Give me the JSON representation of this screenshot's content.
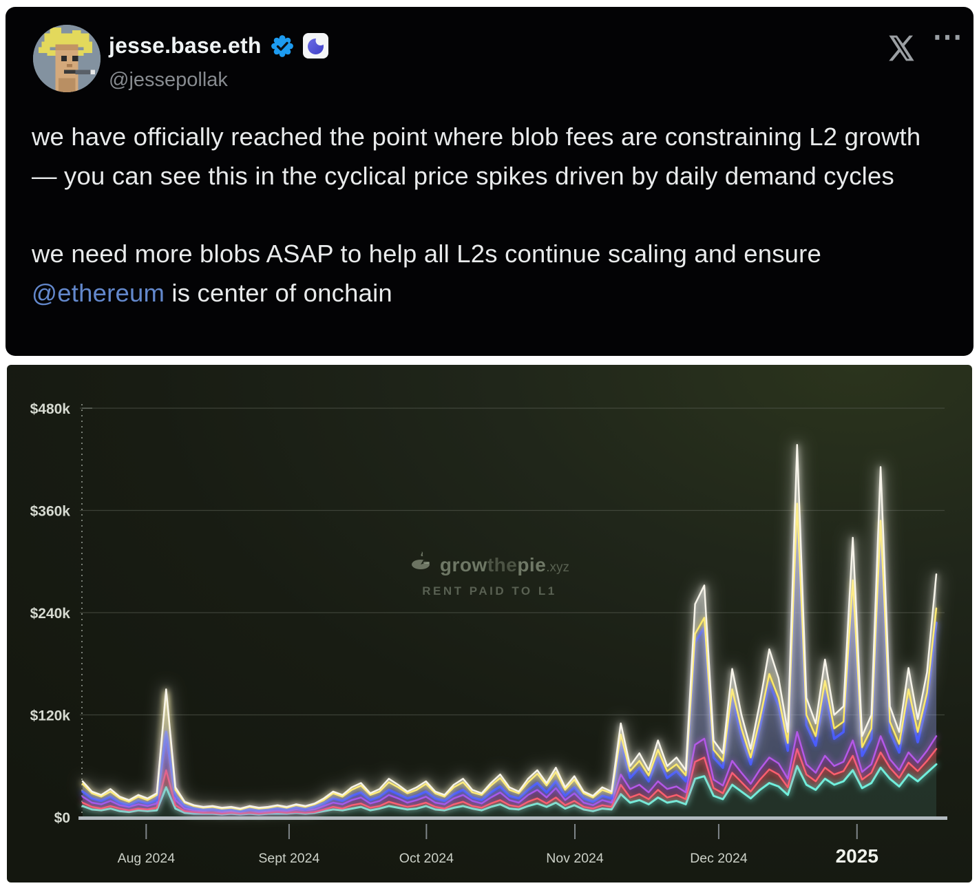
{
  "tweet": {
    "display_name": "jesse.base.eth",
    "handle": "@jessepollak",
    "icons": {
      "more": "⋯"
    },
    "body": {
      "para1": "we have officially reached the point where blob fees are constraining L2 growth — you can see this in the cyclical price spikes driven by daily demand cycles",
      "para2_before": "we need more blobs ASAP to help all L2s continue scaling and ensure ",
      "para2_link": "@ethereum",
      "para2_after": " is center of onchain"
    },
    "colors": {
      "link_blue": "#6388cc",
      "verified_blue": "#1d9bf0",
      "base_badge_blue": "#5355d8"
    }
  },
  "chart": {
    "watermark": {
      "brand_prefix": "grow",
      "brand_mid": "the",
      "brand_suffix": "pie",
      "tld": ".xyz",
      "subtitle": "RENT PAID TO L1"
    }
  },
  "chart_data": {
    "type": "area",
    "stacked": true,
    "title": "RENT PAID TO L1",
    "watermark": "growthepie.xyz",
    "x_range": "mid-Jul 2024 to mid-Jan 2025, daily data (sampled every 2 days here)",
    "x_tick_labels": [
      "Aug 2024",
      "Sept 2024",
      "Oct 2024",
      "Nov 2024",
      "Dec 2024",
      "2025"
    ],
    "x_tick_days": [
      13.7,
      44.5,
      74.1,
      106.1,
      137.1,
      166.9
    ],
    "y_tick_labels": [
      "$0",
      "$120k",
      "$240k",
      "$360k",
      "$480k"
    ],
    "y_tick_values": [
      0,
      120,
      240,
      360,
      480
    ],
    "ylim": [
      0,
      480
    ],
    "y_unit": "thousand USD per day",
    "days_span": 184,
    "sample_step_days": 2,
    "grid": true,
    "legend": "none visible",
    "note": "Stacked area chart of daily rent paid to L1 by L2s. Values are cumulative stack tops in $k; series listed bottom to top. No legend visible, so series are named by line color. Landmarks: ~$150k spike early Aug 2024, quiet ~$10-15k mid-Aug to mid-Sept, ~$30-55k cyclical bumps Oct-Nov, ~$110k spike mid-Nov, twin spikes ~$250k/$272k early Dec, giant ~$437k spike late Dec, ~$328k and ~$411k spikes early-mid Jan 2025, rising to ~$285k at right edge.",
    "series": [
      {
        "name": "cyan-series",
        "color": "#6ff0dd",
        "cumulative_values": [
          13,
          9,
          8,
          10,
          7,
          6,
          8,
          7,
          8,
          35,
          10,
          5,
          4,
          4,
          4,
          3,
          4,
          3,
          4,
          3,
          4,
          4,
          4,
          5,
          4,
          5,
          7,
          9,
          8,
          10,
          12,
          8,
          10,
          13,
          11,
          9,
          10,
          13,
          9,
          8,
          11,
          13,
          10,
          8,
          12,
          15,
          10,
          9,
          13,
          16,
          12,
          17,
          10,
          14,
          9,
          7,
          10,
          9,
          27,
          17,
          20,
          15,
          23,
          17,
          19,
          15,
          45,
          48,
          25,
          21,
          38,
          30,
          22,
          32,
          40,
          36,
          26,
          60,
          38,
          32,
          45,
          38,
          42,
          55,
          34,
          40,
          58,
          45,
          36,
          50,
          42,
          52,
          62
        ]
      },
      {
        "name": "red-series",
        "color": "#ff5f6d",
        "cumulative_values": [
          17,
          12,
          10,
          13,
          10,
          8,
          10,
          9,
          11,
          55,
          14,
          7,
          6,
          5,
          5,
          4,
          5,
          4,
          5,
          4,
          5,
          6,
          5,
          6,
          5,
          6,
          9,
          12,
          10,
          14,
          16,
          11,
          13,
          18,
          15,
          12,
          14,
          17,
          12,
          10,
          15,
          18,
          13,
          11,
          16,
          20,
          14,
          12,
          18,
          22,
          16,
          23,
          14,
          19,
          12,
          10,
          14,
          12,
          38,
          23,
          27,
          21,
          32,
          23,
          26,
          21,
          65,
          70,
          34,
          28,
          52,
          41,
          30,
          44,
          56,
          50,
          35,
          80,
          50,
          42,
          58,
          50,
          54,
          72,
          44,
          52,
          76,
          58,
          46,
          64,
          54,
          66,
          80
        ]
      },
      {
        "name": "purple-series",
        "color": "#b558e8",
        "cumulative_values": [
          24,
          17,
          15,
          19,
          14,
          12,
          15,
          13,
          16,
          95,
          20,
          10,
          8,
          7,
          8,
          6,
          7,
          6,
          8,
          6,
          7,
          8,
          7,
          9,
          8,
          9,
          13,
          17,
          15,
          20,
          23,
          16,
          19,
          26,
          22,
          17,
          20,
          24,
          17,
          15,
          22,
          26,
          19,
          16,
          23,
          29,
          20,
          17,
          26,
          32,
          23,
          34,
          20,
          28,
          17,
          14,
          20,
          17,
          50,
          33,
          38,
          29,
          42,
          33,
          36,
          29,
          85,
          92,
          44,
          37,
          66,
          52,
          39,
          56,
          70,
          63,
          45,
          100,
          62,
          52,
          72,
          60,
          65,
          90,
          53,
          62,
          95,
          68,
          55,
          76,
          64,
          78,
          95
        ]
      },
      {
        "name": "blue-series",
        "color": "#4a5cff",
        "cumulative_values": [
          30,
          22,
          19,
          24,
          17,
          14,
          19,
          16,
          20,
          100,
          25,
          13,
          10,
          9,
          9,
          8,
          9,
          7,
          9,
          8,
          9,
          10,
          9,
          11,
          9,
          12,
          16,
          22,
          19,
          25,
          29,
          20,
          24,
          32,
          27,
          22,
          25,
          30,
          22,
          19,
          27,
          32,
          23,
          20,
          29,
          36,
          25,
          22,
          32,
          40,
          29,
          42,
          25,
          35,
          22,
          18,
          25,
          22,
          88,
          46,
          58,
          42,
          70,
          46,
          54,
          42,
          205,
          223,
          70,
          58,
          140,
          94,
          62,
          106,
          158,
          130,
          78,
          355,
          108,
          84,
          148,
          92,
          100,
          265,
          72,
          92,
          335,
          100,
          76,
          138,
          88,
          134,
          228
        ]
      },
      {
        "name": "yellow-series",
        "color": "#ffe95e",
        "cumulative_values": [
          39,
          28,
          24,
          30,
          22,
          18,
          24,
          20,
          26,
          148,
          32,
          17,
          13,
          11,
          12,
          10,
          11,
          9,
          12,
          10,
          11,
          13,
          11,
          14,
          12,
          15,
          20,
          28,
          24,
          32,
          37,
          26,
          30,
          41,
          35,
          28,
          32,
          39,
          28,
          24,
          35,
          41,
          29,
          26,
          37,
          46,
          32,
          28,
          41,
          51,
          37,
          53,
          32,
          44,
          28,
          23,
          32,
          28,
          97,
          54,
          66,
          49,
          79,
          54,
          62,
          49,
          215,
          234,
          79,
          66,
          150,
          104,
          70,
          116,
          168,
          140,
          87,
          368,
          120,
          95,
          160,
          104,
          112,
          278,
          82,
          104,
          348,
          112,
          86,
          150,
          100,
          146,
          245
        ]
      },
      {
        "name": "white-total-line",
        "color": "#f7f4ea",
        "cumulative_values": [
          42,
          30,
          26,
          33,
          24,
          20,
          26,
          22,
          28,
          150,
          35,
          18,
          14,
          12,
          13,
          11,
          12,
          10,
          13,
          11,
          12,
          14,
          12,
          15,
          13,
          16,
          22,
          30,
          26,
          35,
          40,
          28,
          33,
          45,
          38,
          30,
          35,
          42,
          30,
          26,
          38,
          45,
          32,
          28,
          40,
          50,
          35,
          30,
          45,
          55,
          40,
          58,
          35,
          48,
          30,
          25,
          35,
          30,
          110,
          60,
          75,
          55,
          90,
          60,
          70,
          55,
          250,
          272,
          90,
          75,
          174,
          120,
          80,
          135,
          197,
          163,
          100,
          437,
          140,
          110,
          185,
          120,
          130,
          328,
          95,
          120,
          411,
          130,
          100,
          175,
          115,
          170,
          285
        ]
      }
    ]
  }
}
